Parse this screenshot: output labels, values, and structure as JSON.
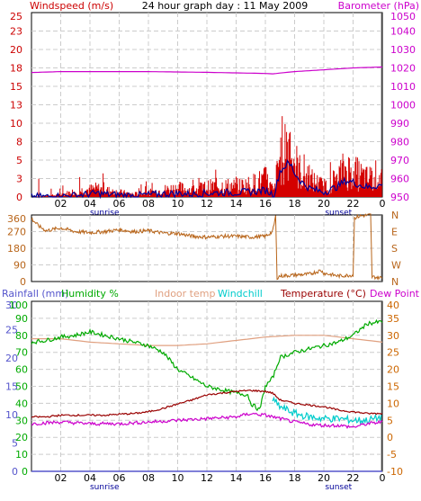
{
  "colors": {
    "windspeed": "#cc0000",
    "wind_gust": "#d40000",
    "wind_avg": "#000099",
    "barometer": "#cc00cc",
    "direction": "#b8651a",
    "rainfall": "#5555cc",
    "humidity": "#00aa00",
    "indoor_temp": "#e0a080",
    "windchill": "#00cccc",
    "temperature": "#990000",
    "dewpoint": "#cc00cc",
    "temp_axis": "#cc6600",
    "grid": "#cccccc"
  },
  "chart_data": [
    {
      "type": "line",
      "title": "24 hour graph day : 11 May 2009",
      "y_left_label": "Windspeed (m/s)",
      "y_right_label": "Barometer (hPa)",
      "y_left_ticks": [
        "0",
        "3",
        "5",
        "8",
        "10",
        "13",
        "15",
        "18",
        "20",
        "23",
        "25"
      ],
      "y_left_range": [
        0,
        25
      ],
      "y_right_ticks": [
        "950",
        "960",
        "970",
        "980",
        "990",
        "1000",
        "1010",
        "1020",
        "1030",
        "1040",
        "1050"
      ],
      "y_right_range": [
        950,
        1050
      ],
      "x_ticks": [
        "02",
        "04",
        "06",
        "08",
        "10",
        "12",
        "14",
        "16",
        "18",
        "20",
        "22",
        "0"
      ],
      "x_range_hours": [
        0,
        24
      ],
      "sunrise": "sunrise",
      "sunset": "sunset",
      "series": [
        {
          "name": "Windspeed (m/s)",
          "axis": "left",
          "style": "gust",
          "points": [
            [
              0,
              0
            ],
            [
              2,
              0.3
            ],
            [
              3,
              0.8
            ],
            [
              4.5,
              1.2
            ],
            [
              5.5,
              0.8
            ],
            [
              7,
              0.4
            ],
            [
              8,
              0.6
            ],
            [
              9,
              1
            ],
            [
              10,
              1.3
            ],
            [
              11,
              1
            ],
            [
              12,
              1.4
            ],
            [
              13,
              1.6
            ],
            [
              14,
              1.5
            ],
            [
              15,
              1.8
            ],
            [
              16,
              2.5
            ],
            [
              16.6,
              0.8
            ],
            [
              17,
              6
            ],
            [
              17.5,
              8
            ],
            [
              17.8,
              9
            ],
            [
              18,
              5
            ],
            [
              18.5,
              3
            ],
            [
              19,
              2.5
            ],
            [
              19.5,
              2
            ],
            [
              20,
              1.5
            ],
            [
              20.5,
              2
            ],
            [
              21,
              3
            ],
            [
              21.5,
              4
            ],
            [
              22,
              3.5
            ],
            [
              22.5,
              3
            ],
            [
              23,
              2.5
            ],
            [
              23.5,
              3
            ],
            [
              24,
              3
            ]
          ],
          "noise": 2.6
        },
        {
          "name": "Wind average",
          "axis": "left",
          "style": "avg",
          "points": [
            [
              0,
              0
            ],
            [
              2,
              0.1
            ],
            [
              3,
              0.2
            ],
            [
              4.5,
              0.5
            ],
            [
              5.5,
              0.3
            ],
            [
              7,
              0.2
            ],
            [
              8,
              0.3
            ],
            [
              9,
              0.4
            ],
            [
              10,
              0.5
            ],
            [
              11,
              0.4
            ],
            [
              12,
              0.5
            ],
            [
              13,
              0.6
            ],
            [
              14,
              0.6
            ],
            [
              15,
              0.7
            ],
            [
              16,
              0.9
            ],
            [
              16.6,
              0.3
            ],
            [
              17,
              3.5
            ],
            [
              17.5,
              4.5
            ],
            [
              17.8,
              4.2
            ],
            [
              18,
              3.2
            ],
            [
              18.5,
              2
            ],
            [
              19,
              1.2
            ],
            [
              19.5,
              0.9
            ],
            [
              20,
              0.7
            ],
            [
              20.5,
              1
            ],
            [
              21,
              1.5
            ],
            [
              21.5,
              2.2
            ],
            [
              22,
              2
            ],
            [
              22.5,
              1.6
            ],
            [
              23,
              1.3
            ],
            [
              23.5,
              1.5
            ],
            [
              24,
              1.6
            ]
          ],
          "noise": 0.5
        },
        {
          "name": "Barometer (hPa)",
          "axis": "right",
          "style": "baro",
          "points": [
            [
              0,
              1017.5
            ],
            [
              2,
              1018
            ],
            [
              4,
              1018
            ],
            [
              6,
              1018
            ],
            [
              8,
              1018
            ],
            [
              10,
              1017.8
            ],
            [
              12,
              1017.6
            ],
            [
              14,
              1017.3
            ],
            [
              16,
              1017
            ],
            [
              16.5,
              1016.8
            ],
            [
              18,
              1018
            ],
            [
              20,
              1019
            ],
            [
              22,
              1020
            ],
            [
              24,
              1020.5
            ]
          ],
          "noise": 0
        }
      ]
    },
    {
      "type": "line",
      "y_left_ticks": [
        "0",
        "90",
        "180",
        "270",
        "360"
      ],
      "y_left_range": [
        0,
        360
      ],
      "y_right_labels": [
        "N",
        "W",
        "S",
        "E",
        "N"
      ],
      "series": [
        {
          "name": "Wind direction",
          "axis": "left",
          "style": "dir",
          "points": [
            [
              0,
              340
            ],
            [
              0.5,
              300
            ],
            [
              1,
              275
            ],
            [
              2,
              290
            ],
            [
              3,
              270
            ],
            [
              4,
              265
            ],
            [
              5,
              270
            ],
            [
              6,
              280
            ],
            [
              7,
              270
            ],
            [
              8,
              275
            ],
            [
              9,
              262
            ],
            [
              10,
              260
            ],
            [
              11,
              245
            ],
            [
              12,
              240
            ],
            [
              13,
              245
            ],
            [
              14,
              245
            ],
            [
              15,
              240
            ],
            [
              16,
              245
            ],
            [
              16.5,
              270
            ],
            [
              16.7,
              355
            ],
            [
              16.8,
              20
            ],
            [
              17,
              30
            ],
            [
              18,
              35
            ],
            [
              19,
              40
            ],
            [
              19.8,
              60
            ],
            [
              20,
              45
            ],
            [
              21,
              30
            ],
            [
              22,
              35
            ],
            [
              22.1,
              345
            ],
            [
              22.5,
              355
            ],
            [
              23.2,
              360
            ],
            [
              23.3,
              25
            ],
            [
              24,
              20
            ]
          ],
          "noise": 10
        }
      ]
    },
    {
      "type": "line",
      "legend": [
        "Rainfall (mm)",
        "Humidity %",
        "Indoor temp",
        "Windchill",
        "Temperature (°C)",
        "Dew Point"
      ],
      "rain_ticks": [
        "0",
        "5",
        "10",
        "15",
        "20",
        "25",
        "30"
      ],
      "rain_range": [
        0,
        30
      ],
      "humidity_ticks": [
        "0",
        "10",
        "20",
        "30",
        "40",
        "50",
        "60",
        "70",
        "80",
        "90",
        "100"
      ],
      "humidity_range": [
        0,
        100
      ],
      "temp_ticks": [
        "-10",
        "-5",
        "0",
        "5",
        "10",
        "15",
        "20",
        "25",
        "30",
        "35",
        "40"
      ],
      "temp_range": [
        -10,
        40
      ],
      "series": [
        {
          "name": "Indoor temp",
          "axis": "temp",
          "style": "indoor",
          "points": [
            [
              0,
              29
            ],
            [
              2,
              29
            ],
            [
              4,
              28
            ],
            [
              6,
              27.5
            ],
            [
              8,
              27
            ],
            [
              10,
              27
            ],
            [
              12,
              27.5
            ],
            [
              14,
              28.5
            ],
            [
              16,
              29.5
            ],
            [
              18,
              30
            ],
            [
              20,
              30
            ],
            [
              22,
              29
            ],
            [
              24,
              28
            ]
          ],
          "noise": 0
        },
        {
          "name": "Humidity %",
          "axis": "humidity",
          "style": "hum",
          "points": [
            [
              0,
              76
            ],
            [
              1,
              77
            ],
            [
              2,
              79
            ],
            [
              3,
              80
            ],
            [
              4,
              82
            ],
            [
              5,
              80
            ],
            [
              6,
              78
            ],
            [
              7,
              76
            ],
            [
              8,
              74
            ],
            [
              9,
              70
            ],
            [
              10,
              60
            ],
            [
              11,
              55
            ],
            [
              12,
              50
            ],
            [
              13,
              48
            ],
            [
              14,
              46
            ],
            [
              14.8,
              45
            ],
            [
              15,
              40
            ],
            [
              15.6,
              36
            ],
            [
              16,
              50
            ],
            [
              16.5,
              55
            ],
            [
              17,
              67
            ],
            [
              18,
              70
            ],
            [
              19,
              72
            ],
            [
              20,
              74
            ],
            [
              21,
              76
            ],
            [
              22,
              80
            ],
            [
              23,
              87
            ],
            [
              24,
              88
            ]
          ],
          "noise": 1.2
        },
        {
          "name": "Windchill",
          "axis": "temp",
          "style": "chill",
          "points": [
            [
              16.5,
              11
            ],
            [
              17,
              9
            ],
            [
              18,
              7
            ],
            [
              19,
              6
            ],
            [
              20,
              5.5
            ],
            [
              21,
              5.5
            ],
            [
              22,
              5
            ],
            [
              23,
              5
            ],
            [
              24,
              6
            ]
          ],
          "noise": 1.1
        },
        {
          "name": "Temperature (°C)",
          "axis": "temp",
          "style": "temp",
          "points": [
            [
              0,
              6
            ],
            [
              1,
              6
            ],
            [
              2,
              6.5
            ],
            [
              3,
              6.5
            ],
            [
              4,
              6.5
            ],
            [
              5,
              6.5
            ],
            [
              6,
              6.8
            ],
            [
              7,
              7
            ],
            [
              8,
              7.5
            ],
            [
              9,
              8.5
            ],
            [
              10,
              9.8
            ],
            [
              11,
              11
            ],
            [
              12,
              12.5
            ],
            [
              13,
              13
            ],
            [
              14,
              13.5
            ],
            [
              15,
              13.8
            ],
            [
              16,
              13.5
            ],
            [
              16.5,
              13
            ],
            [
              17,
              11
            ],
            [
              18,
              10
            ],
            [
              19,
              9.5
            ],
            [
              20,
              9
            ],
            [
              21,
              8
            ],
            [
              22,
              7.5
            ],
            [
              23,
              7
            ],
            [
              24,
              7
            ]
          ],
          "noise": 0.25
        },
        {
          "name": "Dew Point",
          "axis": "temp",
          "style": "dew",
          "points": [
            [
              0,
              4
            ],
            [
              2,
              4.5
            ],
            [
              4,
              4
            ],
            [
              6,
              4
            ],
            [
              8,
              4.5
            ],
            [
              10,
              5
            ],
            [
              12,
              5.5
            ],
            [
              14,
              6
            ],
            [
              15,
              7
            ],
            [
              16,
              6.5
            ],
            [
              17,
              5.5
            ],
            [
              18,
              4.5
            ],
            [
              19,
              3.8
            ],
            [
              20,
              3.5
            ],
            [
              21,
              3.5
            ],
            [
              22,
              3
            ],
            [
              23,
              4
            ],
            [
              24,
              4.5
            ]
          ],
          "noise": 0.5
        },
        {
          "name": "Rainfall (mm)",
          "axis": "rain",
          "style": "rain",
          "points": [
            [
              0,
              0
            ],
            [
              24,
              0
            ]
          ],
          "noise": 0
        }
      ]
    }
  ]
}
